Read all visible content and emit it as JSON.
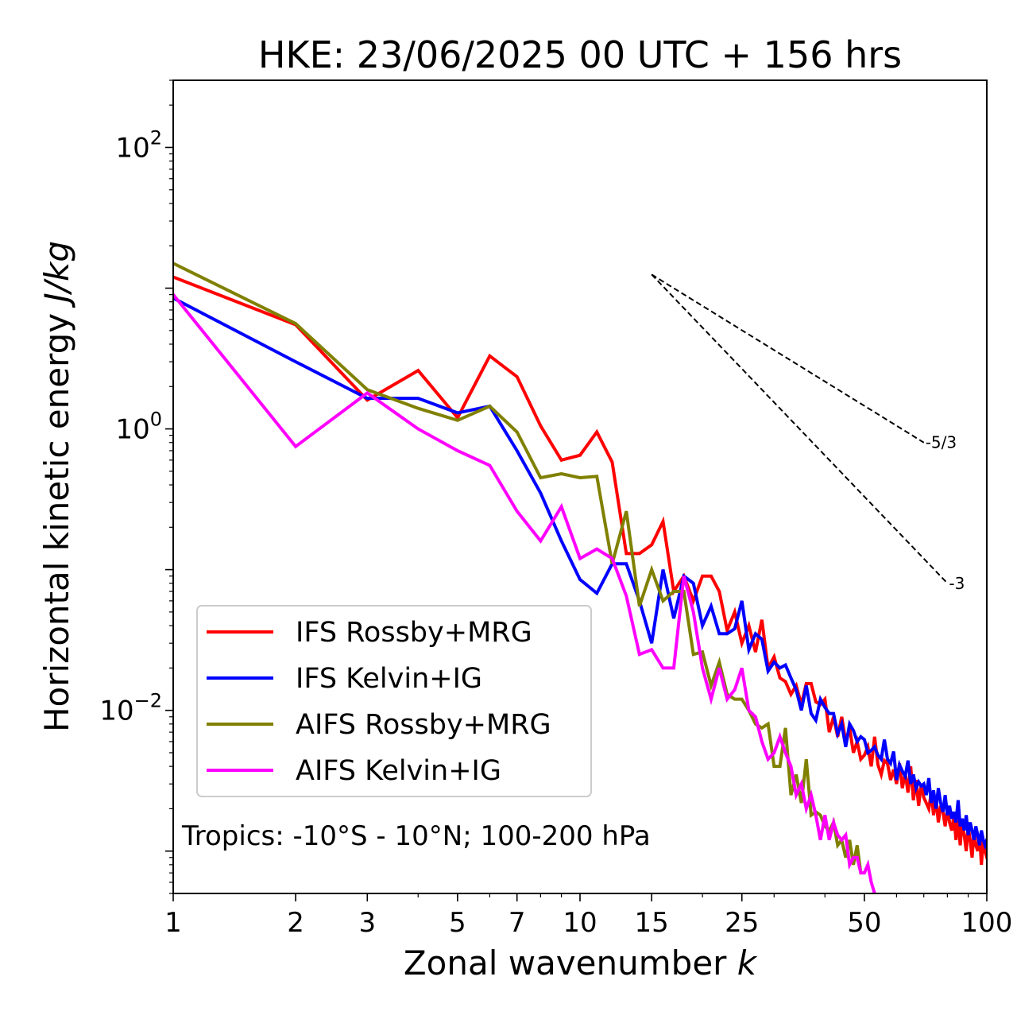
{
  "chart_data": {
    "type": "line",
    "title": "HKE: 23/06/2025 00 UTC + 156 hrs",
    "xlabel_text": "Zonal wavenumber ",
    "xlabel_var": "k",
    "ylabel_text": "Horizontal kinetic energy ",
    "ylabel_unit": "J/kg",
    "x_scale": "log",
    "y_scale": "log",
    "xlim": [
      1,
      100
    ],
    "ylim": [
      0.0005,
      300
    ],
    "x_ticks": [
      {
        "value": 1,
        "label": "1"
      },
      {
        "value": 2,
        "label": "2"
      },
      {
        "value": 3,
        "label": "3"
      },
      {
        "value": 5,
        "label": "5"
      },
      {
        "value": 7,
        "label": "7"
      },
      {
        "value": 10,
        "label": "10"
      },
      {
        "value": 15,
        "label": "15"
      },
      {
        "value": 25,
        "label": "25"
      },
      {
        "value": 50,
        "label": "50"
      },
      {
        "value": 100,
        "label": "100"
      }
    ],
    "y_ticks": [
      {
        "value": 0.01,
        "base": "10",
        "exp": "−2"
      },
      {
        "value": 1,
        "base": "10",
        "exp": "0"
      },
      {
        "value": 100,
        "base": "10",
        "exp": "2"
      }
    ],
    "grid": false,
    "legend_position": "lower-left",
    "annotation": "Tropics: -10°S - 10°N; 100-200 hPa",
    "reference_lines": [
      {
        "label": "-5/3",
        "x": [
          15,
          70
        ],
        "y": [
          12.5,
          0.8
        ]
      },
      {
        "label": "-3",
        "x": [
          15,
          80
        ],
        "y": [
          12.5,
          0.08
        ]
      }
    ],
    "series": [
      {
        "name": "IFS Rossby+MRG",
        "color": "#ff0000",
        "x": [
          1,
          2,
          3,
          4,
          5,
          6,
          7,
          8,
          9,
          10,
          11,
          12,
          13,
          14,
          15,
          16,
          17,
          18,
          19,
          20,
          21,
          22,
          23,
          24,
          25,
          26,
          27,
          28,
          29,
          30,
          31,
          32,
          33,
          34,
          35,
          36,
          37,
          38,
          39,
          40,
          41,
          42,
          43,
          44,
          45,
          46,
          47,
          48,
          49,
          50,
          51,
          52,
          53,
          54,
          55,
          56,
          57,
          58,
          59,
          60,
          61,
          62,
          63,
          64,
          65,
          66,
          67,
          68,
          69,
          70,
          71,
          72,
          73,
          74,
          75,
          76,
          77,
          78,
          79,
          80,
          81,
          82,
          83,
          84,
          85,
          86,
          87,
          88,
          89,
          90,
          91,
          92,
          93,
          94,
          95,
          96,
          97,
          98,
          99,
          100
        ],
        "y": [
          12,
          5.5,
          1.6,
          2.6,
          1.2,
          3.3,
          2.35,
          1.05,
          0.6,
          0.65,
          0.95,
          0.58,
          0.13,
          0.13,
          0.15,
          0.22,
          0.07,
          0.09,
          0.06,
          0.09,
          0.09,
          0.07,
          0.037,
          0.05,
          0.03,
          0.04,
          0.026,
          0.044,
          0.02,
          0.024,
          0.017,
          0.016,
          0.013,
          0.015,
          0.011,
          0.0155,
          0.0155,
          0.0115,
          0.011,
          0.012,
          0.007,
          0.009,
          0.0065,
          0.009,
          0.006,
          0.0075,
          0.005,
          0.006,
          0.0045,
          0.0048,
          0.0055,
          0.004,
          0.0065,
          0.0041,
          0.0035,
          0.0044,
          0.0042,
          0.0032,
          0.0038,
          0.003,
          0.0042,
          0.0028,
          0.0036,
          0.0026,
          0.004,
          0.0023,
          0.0032,
          0.0021,
          0.003,
          0.0024,
          0.0022,
          0.002,
          0.0026,
          0.0018,
          0.0024,
          0.0016,
          0.0021,
          0.0019,
          0.0015,
          0.002,
          0.0016,
          0.0014,
          0.0018,
          0.0012,
          0.0017,
          0.0011,
          0.0016,
          0.0013,
          0.001,
          0.0015,
          0.0012,
          0.0009,
          0.0014,
          0.0011,
          0.001,
          0.0013,
          0.0008,
          0.0012,
          0.001,
          0.0009
        ]
      },
      {
        "name": "IFS Kelvin+IG",
        "color": "#0000ff",
        "x": [
          1,
          2,
          3,
          4,
          5,
          6,
          7,
          8,
          9,
          10,
          11,
          12,
          13,
          14,
          15,
          16,
          17,
          18,
          19,
          20,
          21,
          22,
          23,
          24,
          25,
          26,
          27,
          28,
          29,
          30,
          31,
          32,
          33,
          34,
          35,
          36,
          37,
          38,
          39,
          40,
          41,
          42,
          43,
          44,
          45,
          46,
          47,
          48,
          49,
          50,
          51,
          52,
          53,
          54,
          55,
          56,
          57,
          58,
          59,
          60,
          61,
          62,
          63,
          64,
          65,
          66,
          67,
          68,
          69,
          70,
          71,
          72,
          73,
          74,
          75,
          76,
          77,
          78,
          79,
          80,
          81,
          82,
          83,
          84,
          85,
          86,
          87,
          88,
          89,
          90,
          91,
          92,
          93,
          94,
          95,
          96,
          97,
          98,
          99,
          100
        ],
        "y": [
          8.5,
          3.0,
          1.65,
          1.65,
          1.3,
          1.45,
          0.7,
          0.35,
          0.16,
          0.085,
          0.068,
          0.11,
          0.11,
          0.06,
          0.03,
          0.1,
          0.045,
          0.09,
          0.08,
          0.04,
          0.055,
          0.035,
          0.035,
          0.038,
          0.06,
          0.027,
          0.035,
          0.032,
          0.019,
          0.022,
          0.02,
          0.021,
          0.017,
          0.014,
          0.01,
          0.015,
          0.0095,
          0.0085,
          0.012,
          0.0105,
          0.0095,
          0.0095,
          0.0068,
          0.008,
          0.0055,
          0.008,
          0.0072,
          0.006,
          0.0065,
          0.0062,
          0.005,
          0.0052,
          0.0055,
          0.0048,
          0.0045,
          0.0062,
          0.0045,
          0.0042,
          0.0051,
          0.0032,
          0.0041,
          0.0037,
          0.0034,
          0.0044,
          0.003,
          0.0035,
          0.0028,
          0.0031,
          0.0029,
          0.003,
          0.0025,
          0.0033,
          0.0022,
          0.0027,
          0.002,
          0.0028,
          0.0022,
          0.0019,
          0.0025,
          0.0018,
          0.0021,
          0.0017,
          0.0019,
          0.0016,
          0.0023,
          0.0015,
          0.0017,
          0.0014,
          0.0018,
          0.0013,
          0.0016,
          0.0014,
          0.0012,
          0.0015,
          0.0013,
          0.0011,
          0.0014,
          0.0012,
          0.0011,
          0.0012
        ]
      },
      {
        "name": "AIFS Rossby+MRG",
        "color": "#808000",
        "x": [
          1,
          2,
          3,
          4,
          5,
          6,
          7,
          8,
          9,
          10,
          11,
          12,
          13,
          14,
          15,
          16,
          17,
          18,
          19,
          20,
          21,
          22,
          23,
          24,
          25,
          26,
          27,
          28,
          29,
          30,
          31,
          32,
          33,
          34,
          35,
          36,
          37,
          38,
          39,
          40,
          41,
          42,
          43,
          44,
          45,
          46,
          47,
          48,
          49
        ],
        "y": [
          15,
          5.6,
          1.9,
          1.4,
          1.15,
          1.45,
          0.95,
          0.45,
          0.48,
          0.45,
          0.46,
          0.11,
          0.26,
          0.055,
          0.1,
          0.06,
          0.07,
          0.07,
          0.025,
          0.026,
          0.015,
          0.022,
          0.013,
          0.012,
          0.012,
          0.01,
          0.008,
          0.0075,
          0.008,
          0.004,
          0.004,
          0.0075,
          0.0025,
          0.0035,
          0.0022,
          0.0045,
          0.0018,
          0.0019,
          0.0018,
          0.0015,
          0.0014,
          0.0016,
          0.0011,
          0.0012,
          0.0009,
          0.0012,
          0.0008,
          0.0011,
          0.0007
        ]
      },
      {
        "name": "AIFS Kelvin+IG",
        "color": "#ff00ff",
        "x": [
          1,
          2,
          3,
          4,
          5,
          6,
          7,
          8,
          9,
          10,
          11,
          12,
          13,
          14,
          15,
          16,
          17,
          18,
          19,
          20,
          21,
          22,
          23,
          24,
          25,
          26,
          27,
          28,
          29,
          30,
          31,
          32,
          33,
          34,
          35,
          36,
          37,
          38,
          39,
          40,
          41,
          42,
          43,
          44,
          45,
          46,
          47,
          48,
          49,
          50,
          51,
          52,
          53
        ],
        "y": [
          9.0,
          0.75,
          1.8,
          1.0,
          0.7,
          0.55,
          0.26,
          0.16,
          0.28,
          0.12,
          0.14,
          0.12,
          0.065,
          0.025,
          0.027,
          0.02,
          0.02,
          0.09,
          0.05,
          0.02,
          0.012,
          0.02,
          0.012,
          0.014,
          0.02,
          0.01,
          0.009,
          0.006,
          0.0045,
          0.005,
          0.0065,
          0.005,
          0.004,
          0.0025,
          0.003,
          0.002,
          0.0025,
          0.0018,
          0.0012,
          0.0018,
          0.0012,
          0.0016,
          0.0013,
          0.0012,
          0.0013,
          0.0008,
          0.0009,
          0.0009,
          0.0007,
          0.0007,
          0.0008,
          0.0006,
          0.0005
        ]
      }
    ]
  }
}
